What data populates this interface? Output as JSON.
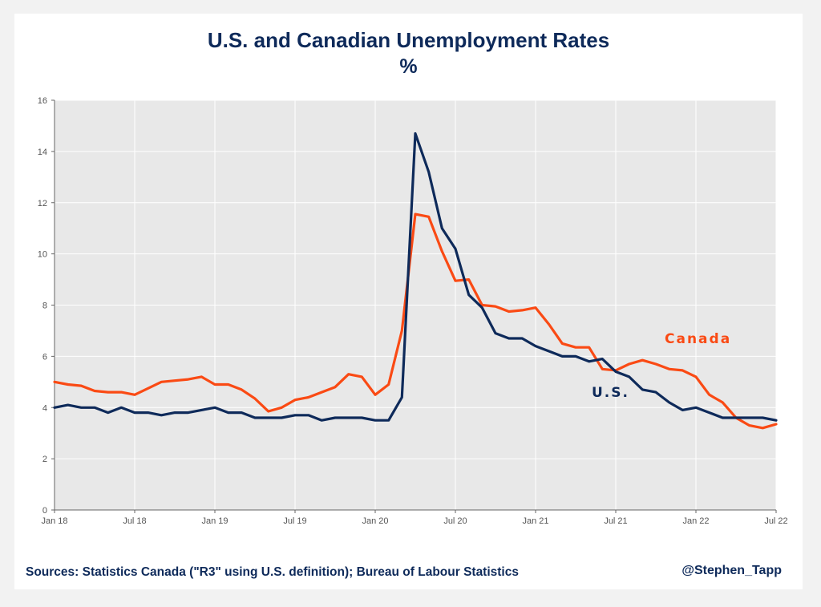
{
  "title": "U.S. and Canadian Unemployment Rates",
  "subtitle": "%",
  "footer": {
    "sources": "Sources: Statistics Canada (\"R3\" using U.S. definition); Bureau of Labour Statistics",
    "handle": "@Stephen_Tapp"
  },
  "colors": {
    "canada": "#fa4a14",
    "us": "#0e2a5a",
    "plot_bg": "#e8e8e8",
    "grid": "#ffffff"
  },
  "chart_data": {
    "type": "line",
    "title": "U.S. and Canadian Unemployment Rates",
    "subtitle": "%",
    "xlabel": "",
    "ylabel": "",
    "ylim": [
      0,
      16
    ],
    "yticks": [
      0,
      2,
      4,
      6,
      8,
      10,
      12,
      14,
      16
    ],
    "grid": true,
    "legend": "inline labels",
    "x": [
      "Jan 18",
      "Feb 18",
      "Mar 18",
      "Apr 18",
      "May 18",
      "Jun 18",
      "Jul 18",
      "Aug 18",
      "Sep 18",
      "Oct 18",
      "Nov 18",
      "Dec 18",
      "Jan 19",
      "Feb 19",
      "Mar 19",
      "Apr 19",
      "May 19",
      "Jun 19",
      "Jul 19",
      "Aug 19",
      "Sep 19",
      "Oct 19",
      "Nov 19",
      "Dec 19",
      "Jan 20",
      "Feb 20",
      "Mar 20",
      "Apr 20",
      "May 20",
      "Jun 20",
      "Jul 20",
      "Aug 20",
      "Sep 20",
      "Oct 20",
      "Nov 20",
      "Dec 20",
      "Jan 21",
      "Feb 21",
      "Mar 21",
      "Apr 21",
      "May 21",
      "Jun 21",
      "Jul 21",
      "Aug 21",
      "Sep 21",
      "Oct 21",
      "Nov 21",
      "Dec 21",
      "Jan 22",
      "Feb 22",
      "Mar 22",
      "Apr 22",
      "May 22",
      "Jun 22",
      "Jul 22"
    ],
    "x_tick_labels": [
      {
        "index": 0,
        "label": "Jan 18"
      },
      {
        "index": 6,
        "label": "Jul 18"
      },
      {
        "index": 12,
        "label": "Jan 19"
      },
      {
        "index": 18,
        "label": "Jul 19"
      },
      {
        "index": 24,
        "label": "Jan 20"
      },
      {
        "index": 30,
        "label": "Jul 20"
      },
      {
        "index": 36,
        "label": "Jan 21"
      },
      {
        "index": 42,
        "label": "Jul 21"
      },
      {
        "index": 48,
        "label": "Jan 22"
      },
      {
        "index": 54,
        "label": "Jul 22"
      }
    ],
    "series": [
      {
        "name": "Canada",
        "label_text": "Canada",
        "color": "#fa4a14",
        "values": [
          5.0,
          4.9,
          4.85,
          4.65,
          4.6,
          4.6,
          4.5,
          4.75,
          5.0,
          5.05,
          5.1,
          5.2,
          4.9,
          4.9,
          4.7,
          4.35,
          3.85,
          4.0,
          4.3,
          4.4,
          4.6,
          4.8,
          5.3,
          5.2,
          4.5,
          4.9,
          7.0,
          11.55,
          11.45,
          10.1,
          8.95,
          9.0,
          8.0,
          7.95,
          7.75,
          7.8,
          7.9,
          7.25,
          6.5,
          6.35,
          6.35,
          5.5,
          5.45,
          5.7,
          5.85,
          5.7,
          5.5,
          5.45,
          5.2,
          4.5,
          4.2,
          3.6,
          3.3,
          3.2,
          3.35
        ]
      },
      {
        "name": "U.S.",
        "label_text": "U.S.",
        "color": "#0e2a5a",
        "values": [
          4.0,
          4.1,
          4.0,
          4.0,
          3.8,
          4.0,
          3.8,
          3.8,
          3.7,
          3.8,
          3.8,
          3.9,
          4.0,
          3.8,
          3.8,
          3.6,
          3.6,
          3.6,
          3.7,
          3.7,
          3.5,
          3.6,
          3.6,
          3.6,
          3.5,
          3.5,
          4.4,
          14.7,
          13.2,
          11.0,
          10.2,
          8.4,
          7.9,
          6.9,
          6.7,
          6.7,
          6.4,
          6.2,
          6.0,
          6.0,
          5.8,
          5.9,
          5.4,
          5.2,
          4.7,
          4.6,
          4.2,
          3.9,
          4.0,
          3.8,
          3.6,
          3.6,
          3.6,
          3.6,
          3.5
        ]
      }
    ]
  }
}
